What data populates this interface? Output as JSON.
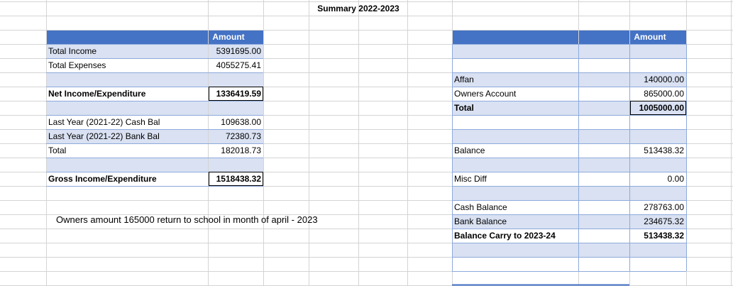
{
  "title": "Summary 2022-2023",
  "left_table": {
    "header": "Amount",
    "rows": [
      {
        "label": "Total Income",
        "value": "5391695.00"
      },
      {
        "label": "Total Expenses",
        "value": "4055275.41"
      },
      {
        "label": "Net Income/Expenditure",
        "value": "1336419.59"
      },
      {
        "label": "Last Year (2021-22) Cash Bal",
        "value": "109638.00"
      },
      {
        "label": "Last Year (2021-22) Bank Bal",
        "value": "72380.73"
      },
      {
        "label": "Total",
        "value": "182018.73"
      },
      {
        "label": "Gross Income/Expenditure",
        "value": "1518438.32"
      }
    ]
  },
  "note": "Owners amount 165000 return to school in month of april - 2023",
  "right_table": {
    "header": "Amount",
    "rows": [
      {
        "label": "Affan",
        "value": "140000.00"
      },
      {
        "label": "Owners Account",
        "value": "865000.00"
      },
      {
        "label": "Total",
        "value": "1005000.00"
      },
      {
        "label": "Balance",
        "value": "513438.32"
      },
      {
        "label": "Misc Diff",
        "value": "0.00"
      },
      {
        "label": "Cash Balance",
        "value": "278763.00"
      },
      {
        "label": "Bank Balance",
        "value": "234675.32"
      },
      {
        "label": "Balance Carry to 2023-24",
        "value": "513438.32"
      }
    ]
  },
  "colors": {
    "header_fill": "#4472c4",
    "band_fill": "#d9e1f2",
    "gridline": "#d4d4d4"
  }
}
